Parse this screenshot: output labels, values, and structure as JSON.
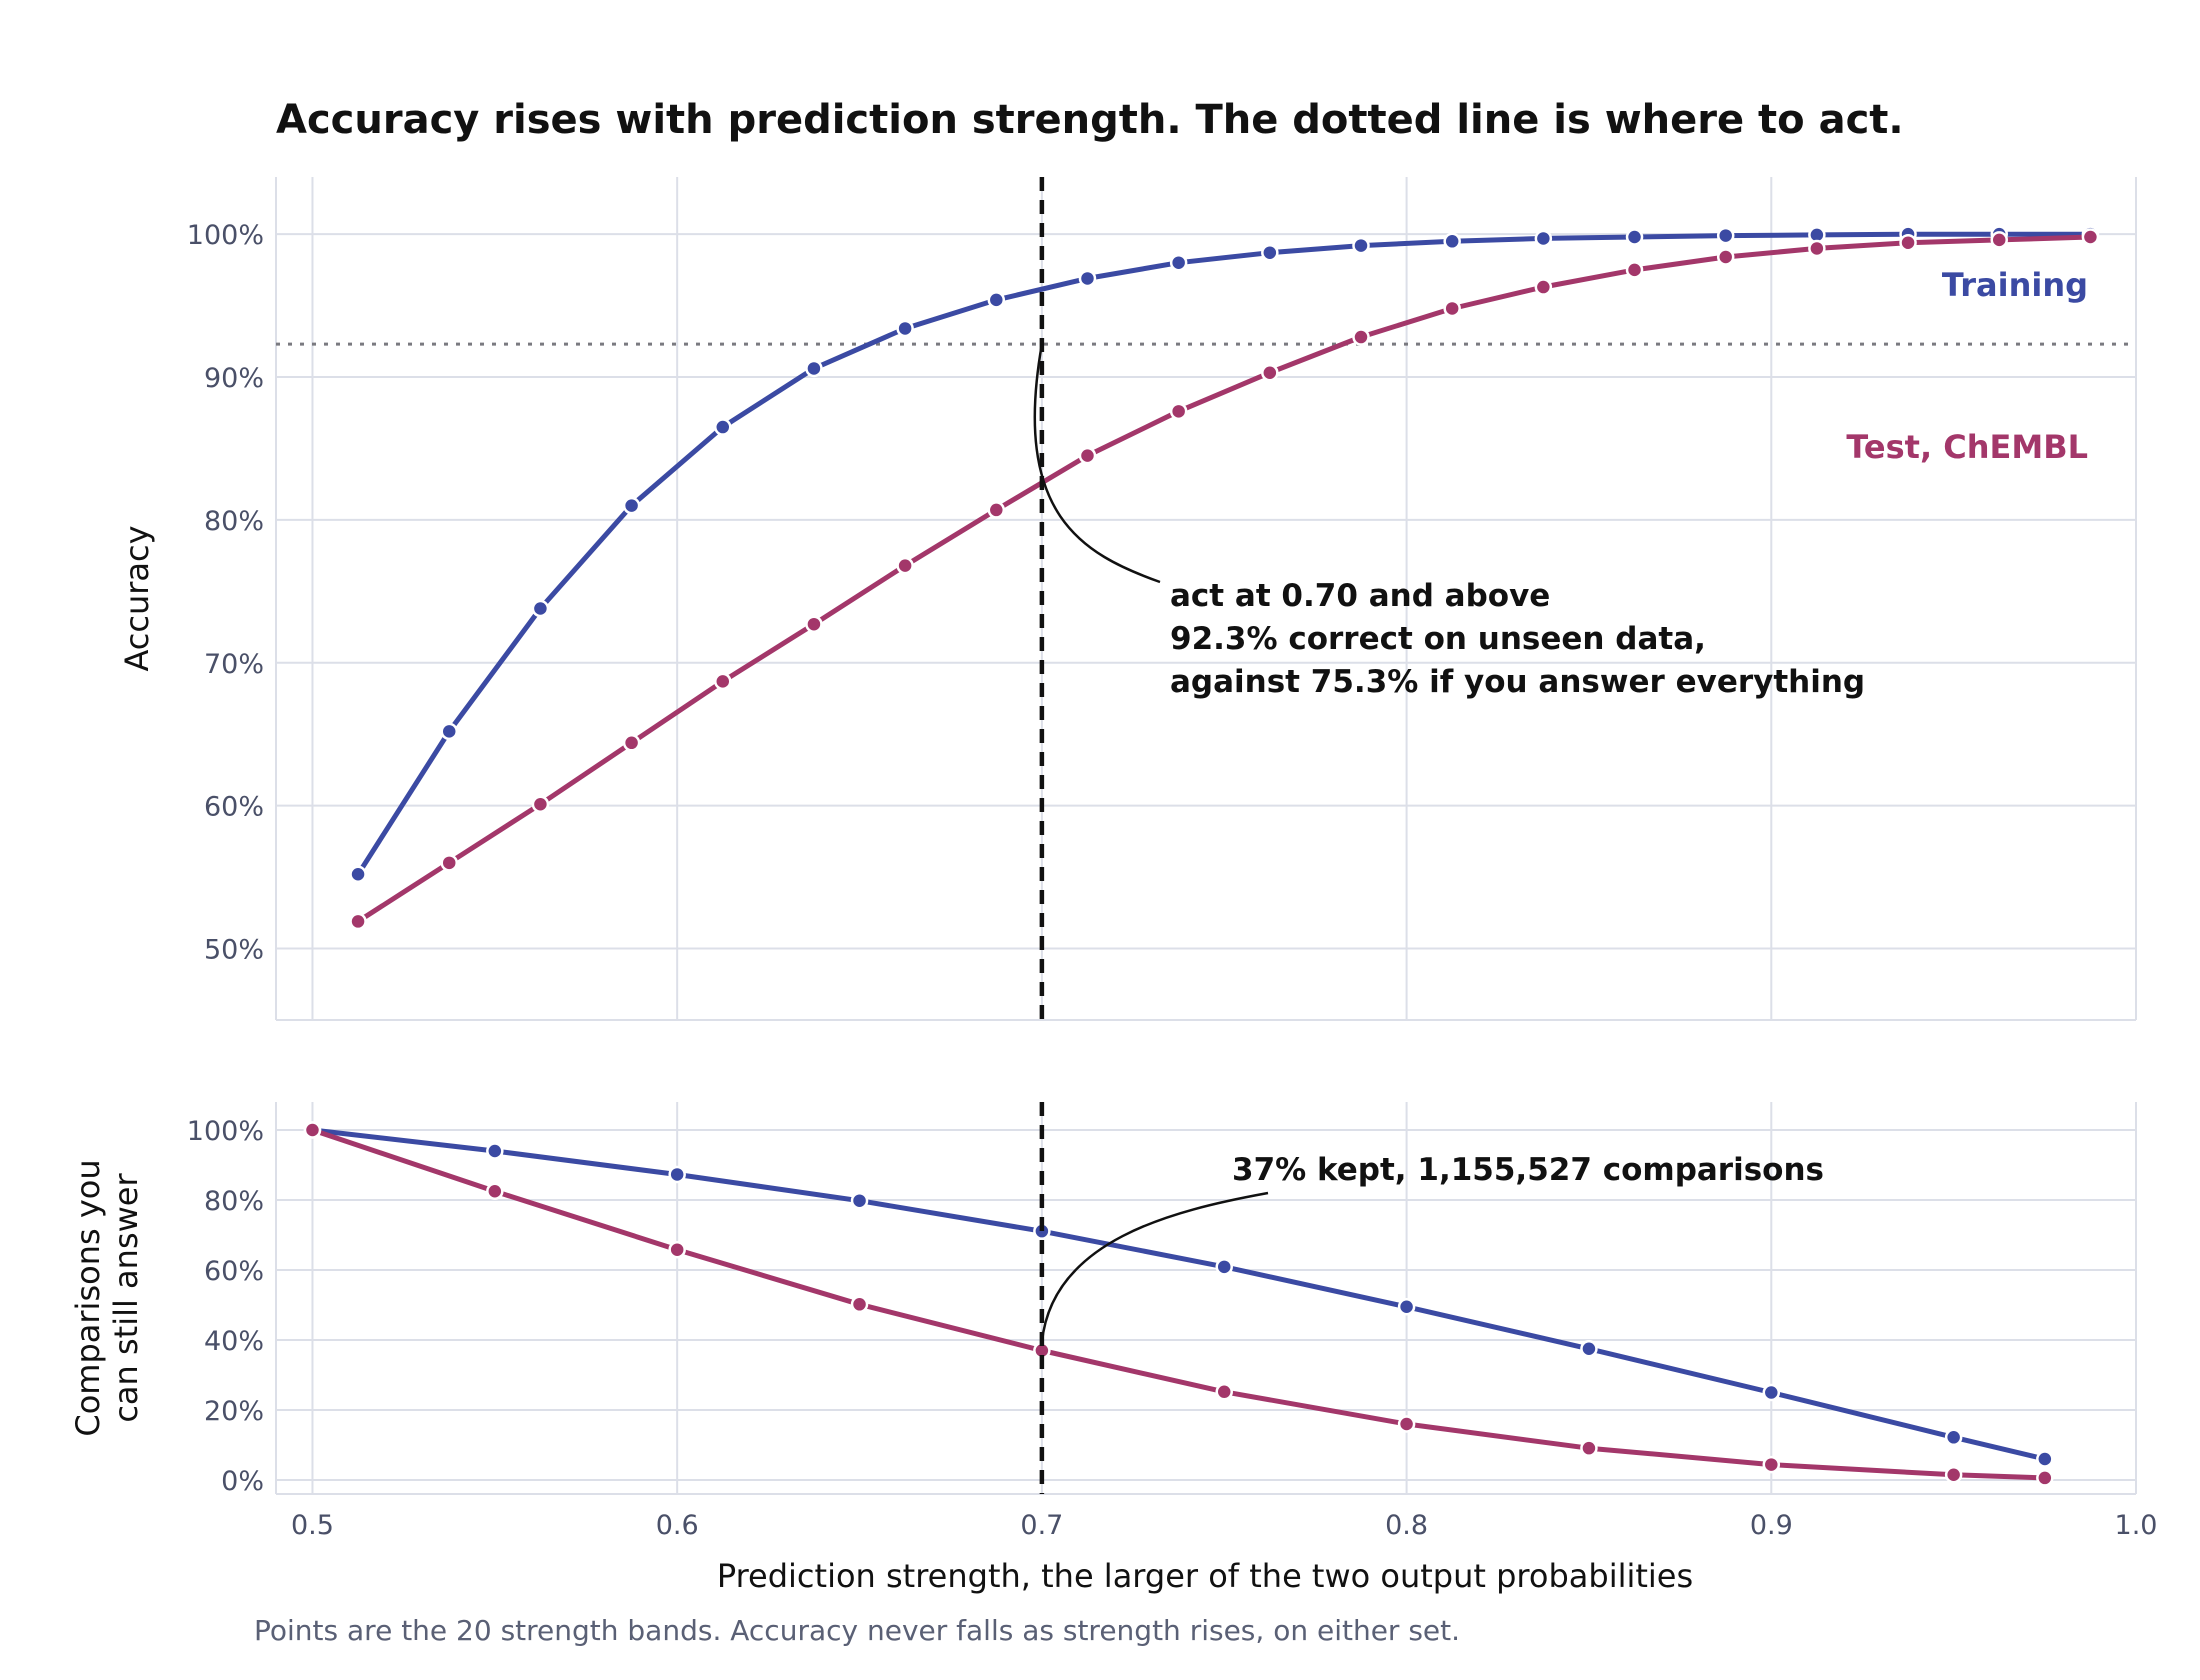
{
  "title": "Accuracy rises with prediction strength. The dotted line is where to act.",
  "footnote": "Points are the 20 strength bands. Accuracy never falls as strength rises, on either set.",
  "colors": {
    "training": "#3b4aa3",
    "test": "#a3376a",
    "grid": "#dcdfe8",
    "tick": "#4a5068"
  },
  "chart_data": [
    {
      "type": "line",
      "ylabel": "Accuracy",
      "xlim": [
        0.49,
        1.0
      ],
      "ylim": [
        45,
        104
      ],
      "y_ticks": [
        50,
        60,
        70,
        80,
        90,
        100
      ],
      "y_tick_labels": [
        "50%",
        "60%",
        "70%",
        "80%",
        "90%",
        "100%"
      ],
      "x_gridlines": [
        0.5,
        0.6,
        0.7,
        0.8,
        0.9,
        1.0
      ],
      "threshold_x": 0.7,
      "reference_y": 92.3,
      "series": [
        {
          "name": "Training",
          "color": "#3b4aa3",
          "x": [
            0.5125,
            0.5375,
            0.5625,
            0.5875,
            0.6125,
            0.6375,
            0.6625,
            0.6875,
            0.7125,
            0.7375,
            0.7625,
            0.7875,
            0.8125,
            0.8375,
            0.8625,
            0.8875,
            0.9125,
            0.9375,
            0.9625,
            0.9875
          ],
          "y": [
            55.2,
            65.2,
            73.8,
            81.0,
            86.5,
            90.6,
            93.4,
            95.4,
            96.9,
            98.0,
            98.7,
            99.2,
            99.5,
            99.7,
            99.8,
            99.9,
            99.95,
            100.0,
            100.0,
            100.0
          ]
        },
        {
          "name": "Test, ChEMBL",
          "color": "#a3376a",
          "x": [
            0.5125,
            0.5375,
            0.5625,
            0.5875,
            0.6125,
            0.6375,
            0.6625,
            0.6875,
            0.7125,
            0.7375,
            0.7625,
            0.7875,
            0.8125,
            0.8375,
            0.8625,
            0.8875,
            0.9125,
            0.9375,
            0.9625,
            0.9875
          ],
          "y": [
            51.9,
            56.0,
            60.1,
            64.4,
            68.7,
            72.7,
            76.8,
            80.7,
            84.5,
            87.6,
            90.3,
            92.8,
            94.8,
            96.3,
            97.5,
            98.4,
            99.0,
            99.4,
            99.6,
            99.8
          ]
        }
      ],
      "annotation": {
        "lines": [
          "act at 0.70 and above",
          "92.3% correct on unseen data,",
          "against 75.3% if you answer everything"
        ]
      }
    },
    {
      "type": "line",
      "ylabel": [
        "Comparisons you",
        "can still answer"
      ],
      "xlabel": "Prediction strength, the larger of the two output probabilities",
      "xlim": [
        0.49,
        1.0
      ],
      "ylim": [
        -4,
        108
      ],
      "x_ticks": [
        0.5,
        0.6,
        0.7,
        0.8,
        0.9,
        1.0
      ],
      "x_tick_labels": [
        "0.5",
        "0.6",
        "0.7",
        "0.8",
        "0.9",
        "1.0"
      ],
      "y_ticks": [
        0,
        20,
        40,
        60,
        80,
        100
      ],
      "y_tick_labels": [
        "0%",
        "20%",
        "40%",
        "60%",
        "80%",
        "100%"
      ],
      "threshold_x": 0.7,
      "series": [
        {
          "name": "Training",
          "color": "#3b4aa3",
          "x": [
            0.5,
            0.55,
            0.6,
            0.65,
            0.7,
            0.75,
            0.8,
            0.85,
            0.9,
            0.95,
            0.975
          ],
          "y": [
            100,
            94,
            87.3,
            79.8,
            71.1,
            60.9,
            49.5,
            37.5,
            25.0,
            12.2,
            6.0
          ]
        },
        {
          "name": "Test, ChEMBL",
          "color": "#a3376a",
          "x": [
            0.5,
            0.55,
            0.6,
            0.65,
            0.7,
            0.75,
            0.8,
            0.85,
            0.9,
            0.95,
            0.975
          ],
          "y": [
            100,
            82.5,
            65.8,
            50.2,
            37.0,
            25.2,
            16.0,
            9.1,
            4.4,
            1.5,
            0.6
          ]
        }
      ],
      "annotation": {
        "lines": [
          "37% kept, 1,155,527 comparisons"
        ]
      }
    }
  ]
}
